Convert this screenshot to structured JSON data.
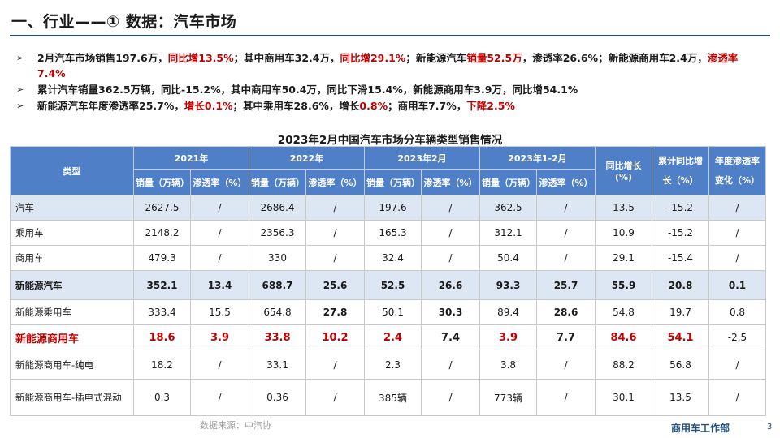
{
  "title": "一、行业——① 数据：汽车市场",
  "bullet_marker": "➢",
  "bullets": [
    [
      {
        "text": "2月汽车市场销售197.6万，",
        "red": false
      },
      {
        "text": "同比增13.5%",
        "red": true
      },
      {
        "text": "；其中商用车32.4万，",
        "red": false
      },
      {
        "text": "同比增29.1%",
        "red": true
      },
      {
        "text": "；新能源汽车",
        "red": false
      },
      {
        "text": "销量52.5万",
        "red": true
      },
      {
        "text": "，渗透率26.6%；新能源商用车2.4万，",
        "red": false
      },
      {
        "text": "渗透率7.4%",
        "red": true
      }
    ],
    [
      {
        "text": "累计汽车销量362.5万辆，同比-15.2%，其中商用车50.4万，同比下滑15.4%，新能源商用车3.9万，同比增54.1%",
        "red": false
      }
    ],
    [
      {
        "text": "新能源汽车年度渗透率25.7%，",
        "red": false
      },
      {
        "text": "增长0.1%",
        "red": true
      },
      {
        "text": "；其中乘用车28.6%，增长",
        "red": false
      },
      {
        "text": "0.8%",
        "red": true
      },
      {
        "text": "；商用车7.7%，",
        "red": false
      },
      {
        "text": "下降2.5%",
        "red": true
      }
    ]
  ],
  "table": {
    "title": "2023年2月中国汽车市场分车辆类型销售情况",
    "header": {
      "type": "类型",
      "groups": [
        "2021年",
        "2022年",
        "2023年2月",
        "2023年1-2月"
      ],
      "sales": "销量（万辆）",
      "rate": "渗透率（%）",
      "yoy_growth": "同比增长(%)",
      "cum_yoy": "累计同比增长（%）",
      "annual_rate_change": "年度渗透率变化（%）"
    },
    "rows": [
      {
        "name": "汽车",
        "cells": [
          "2627.5",
          "/",
          "2686.4",
          "/",
          "197.6",
          "/",
          "362.5",
          "/",
          "13.5",
          "-15.2",
          "/"
        ]
      },
      {
        "name": "乘用车",
        "cells": [
          "2148.2",
          "/",
          "2356.3",
          "/",
          "165.3",
          "/",
          "312.1",
          "/",
          "10.9",
          "-15.2",
          "/"
        ]
      },
      {
        "name": "商用车",
        "cells": [
          "479.3",
          "/",
          "330",
          "/",
          "32.4",
          "/",
          "50.4",
          "/",
          "29.1",
          "-15.4",
          "/"
        ]
      },
      {
        "name": "新能源汽车",
        "cells": [
          "352.1",
          "13.4",
          "688.7",
          "25.6",
          "52.5",
          "26.6",
          "93.3",
          "25.7",
          "55.9",
          "20.8",
          "0.1"
        ]
      },
      {
        "name": "新能源乘用车",
        "cells": [
          "333.4",
          "15.5",
          "654.8",
          "27.8",
          "50.1",
          "30.3",
          "89.4",
          "28.6",
          "54.8",
          "19.7",
          "0.8"
        ]
      },
      {
        "name": "新能源商用车",
        "cells": [
          "18.6",
          "3.9",
          "33.8",
          "10.2",
          "2.4",
          "7.4",
          "3.9",
          "7.7",
          "84.6",
          "54.1",
          "-2.5"
        ]
      },
      {
        "name": "新能源商用车-纯电",
        "cells": [
          "18.2",
          "/",
          "33.1",
          "/",
          "2.3",
          "/",
          "3.8",
          "/",
          "88.2",
          "56.8",
          "/"
        ]
      },
      {
        "name": "新能源商用车-插电式混动",
        "cells": [
          "0.3",
          "/",
          "0.36",
          "/",
          "385辆",
          "/",
          "773辆",
          "/",
          "30.1",
          "13.5",
          "/"
        ]
      }
    ]
  },
  "footer": {
    "source": "数据来源：中汽协",
    "dept": "商用车工作部",
    "page": "3"
  },
  "colors": {
    "header_bg": "#4f7fc7",
    "shade_row": "#dde6f3",
    "emphasis_red": "#c00000",
    "title_rule": "#1f4e79"
  }
}
